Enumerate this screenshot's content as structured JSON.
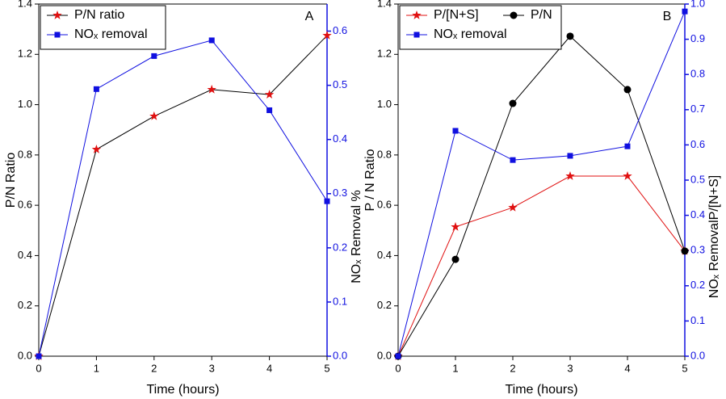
{
  "chart_data": [
    {
      "type": "line",
      "annotation": "A",
      "xlabel": "Time (hours)",
      "ylabel": "P/N Ratio",
      "y2label": [
        "NOₓ Removal %"
      ],
      "y2label_colors": [
        "#000000"
      ],
      "x": [
        0,
        1,
        2,
        3,
        4,
        5
      ],
      "series": [
        {
          "name": "P/N  ratio",
          "color": "#e01010",
          "line_color": "#000000",
          "marker": "star",
          "values": [
            0,
            0.822,
            0.954,
            1.06,
            1.04,
            1.275
          ]
        },
        {
          "name": "NOₓ removal",
          "color": "#1010e0",
          "line_color": "#1010e0",
          "marker": "square",
          "axis": "y2",
          "values": [
            0,
            0.493,
            0.554,
            0.583,
            0.454,
            0.286
          ]
        }
      ],
      "xlim": [
        0,
        5
      ],
      "xticks": [
        0,
        1,
        2,
        3,
        4,
        5
      ],
      "ylim": [
        0,
        1.4
      ],
      "yticks": [
        {
          "value": 0,
          "label": "0.0"
        },
        0.2,
        0.4,
        0.6,
        0.8,
        {
          "value": 1,
          "label": "1.0"
        },
        1.2,
        1.4
      ],
      "y2lim": [
        0,
        0.65
      ],
      "y2ticks": [
        {
          "value": 0,
          "label": "0.0"
        },
        0.1,
        0.2,
        0.3,
        0.4,
        0.5,
        0.6
      ],
      "y2_color": "#1010e0",
      "legend": "upper left"
    },
    {
      "type": "line",
      "annotation": "B",
      "xlabel": "Time (hours)",
      "ylabel": "P / N Ratio",
      "y2label": [
        "NOₓ Removal",
        "P/[N+S]"
      ],
      "y2label_colors": [
        "#000000",
        "#000000"
      ],
      "x": [
        0,
        1,
        2,
        3,
        4,
        5
      ],
      "series": [
        {
          "name": "P/[N+S]",
          "color": "#e01010",
          "line_color": "#e01010",
          "marker": "star",
          "values": [
            0,
            0.514,
            0.591,
            0.716,
            0.716,
            0.418
          ]
        },
        {
          "name": "P/N",
          "color": "#000000",
          "line_color": "#000000",
          "marker": "circle",
          "values": [
            0,
            0.385,
            1.005,
            1.272,
            1.06,
            0.418
          ]
        },
        {
          "name": "NOₓ removal",
          "color": "#1010e0",
          "line_color": "#1010e0",
          "marker": "square",
          "axis": "y2",
          "values": [
            0,
            0.64,
            0.557,
            0.569,
            0.596,
            0.979
          ]
        }
      ],
      "xlim": [
        0,
        5
      ],
      "xticks": [
        0,
        1,
        2,
        3,
        4,
        5
      ],
      "ylim": [
        0,
        1.4
      ],
      "yticks": [
        {
          "value": 0,
          "label": "0.0"
        },
        0.2,
        0.4,
        0.6,
        0.8,
        {
          "value": 1,
          "label": "1.0"
        },
        1.2,
        1.4
      ],
      "y2lim": [
        0,
        1
      ],
      "y2ticks": [
        {
          "value": 0,
          "label": "0.0"
        },
        0.1,
        0.2,
        0.3,
        0.4,
        0.5,
        0.6,
        0.7,
        0.8,
        0.9,
        {
          "value": 1,
          "label": "1.0"
        }
      ],
      "y2_color": "#1010e0",
      "legend": "upper left"
    }
  ]
}
